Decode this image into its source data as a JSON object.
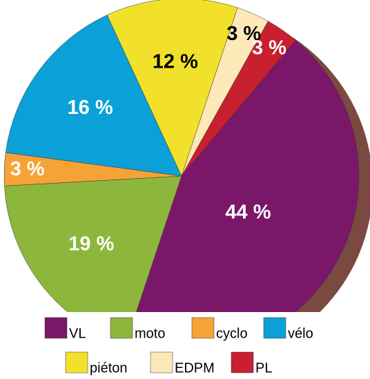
{
  "chart_data": {
    "type": "pie",
    "categories": [
      "VL",
      "moto",
      "cyclo",
      "vélo",
      "piéton",
      "EDPM",
      "PL"
    ],
    "values": [
      44,
      19,
      3,
      16,
      12,
      3,
      3
    ],
    "value_labels": [
      "44 %",
      "19 %",
      "3 %",
      "16 %",
      "12 %",
      "3 %",
      "3 %"
    ],
    "colors": [
      "#7b1769",
      "#8cb63c",
      "#f5a236",
      "#0ba1d8",
      "#f2e12b",
      "#fde8b8",
      "#c8202f"
    ],
    "label_colors": [
      "#ffffff",
      "#ffffff",
      "#ffffff",
      "#ffffff",
      "#000000",
      "#000000",
      "#ffffff"
    ],
    "legend": "bottom"
  }
}
